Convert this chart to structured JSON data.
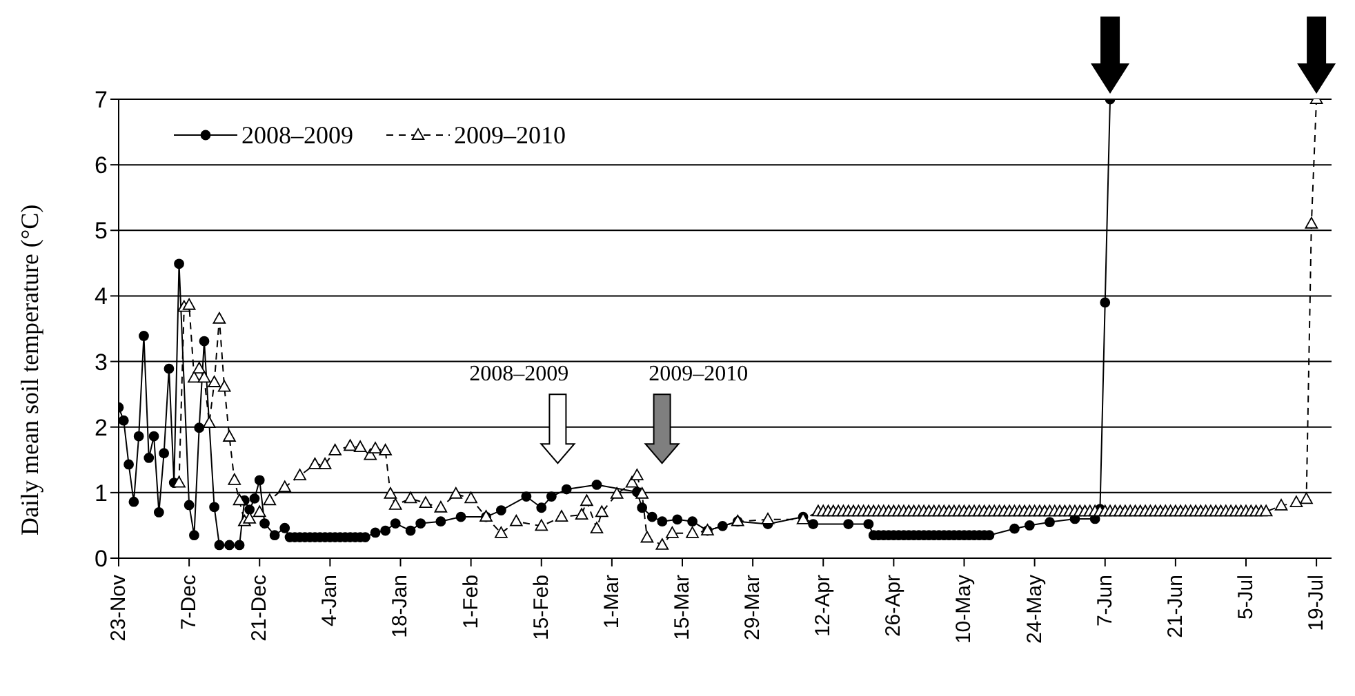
{
  "chart_data": {
    "type": "line",
    "ylabel": "Daily mean soil temperature (°C)",
    "categories": [
      "23-Nov",
      null,
      null,
      null,
      null,
      null,
      null,
      null,
      null,
      null,
      null,
      null,
      null,
      null,
      "7-Dec",
      null,
      null,
      null,
      null,
      null,
      null,
      null,
      null,
      null,
      null,
      null,
      null,
      null,
      "21-Dec",
      null,
      null,
      null,
      null,
      null,
      null,
      null,
      null,
      null,
      null,
      null,
      null,
      null,
      "4-Jan",
      null,
      null,
      null,
      null,
      null,
      null,
      null,
      null,
      null,
      null,
      null,
      null,
      null,
      "18-Jan",
      null,
      null,
      null,
      null,
      null,
      null,
      null,
      null,
      null,
      null,
      null,
      null,
      null,
      "1-Feb",
      null,
      null,
      null,
      null,
      null,
      null,
      null,
      null,
      null,
      null,
      null,
      null,
      null,
      "15-Feb",
      null,
      null,
      null,
      null,
      null,
      null,
      null,
      null,
      null,
      null,
      null,
      null,
      null,
      "1-Mar",
      null,
      null,
      null,
      null,
      null,
      null,
      null,
      null,
      null,
      null,
      null,
      null,
      null,
      "15-Mar",
      null,
      null,
      null,
      null,
      null,
      null,
      null,
      null,
      null,
      null,
      null,
      null,
      null,
      "29-Mar",
      null,
      null,
      null,
      null,
      null,
      null,
      null,
      null,
      null,
      null,
      null,
      null,
      null,
      "12-Apr",
      null,
      null,
      null,
      null,
      null,
      null,
      null,
      null,
      null,
      null,
      null,
      null,
      null,
      "26-Apr",
      null,
      null,
      null,
      null,
      null,
      null,
      null,
      null,
      null,
      null,
      null,
      null,
      null,
      "10-May",
      null,
      null,
      null,
      null,
      null,
      null,
      null,
      null,
      null,
      null,
      null,
      null,
      null,
      "24-May",
      null,
      null,
      null,
      null,
      null,
      null,
      null,
      null,
      null,
      null,
      null,
      null,
      null,
      "7-Jun",
      null,
      null,
      null,
      null,
      null,
      null,
      null,
      null,
      null,
      null,
      null,
      null,
      null,
      "21-Jun",
      null,
      null,
      null,
      null,
      null,
      null,
      null,
      null,
      null,
      null,
      null,
      null,
      null,
      "5-Jul",
      null,
      null,
      null,
      null,
      null,
      null,
      null,
      null,
      null,
      null,
      null,
      null,
      null,
      "19-Jul",
      null,
      null,
      null
    ],
    "ylim": [
      0,
      7
    ],
    "yticks": [
      0,
      1,
      2,
      3,
      4,
      5,
      6,
      7
    ],
    "grid": "y",
    "legend": "top left",
    "series": [
      {
        "name": "2008–2009",
        "color": "#000000",
        "marker": "circle",
        "line_style": "solid",
        "values": [
          2.3,
          2.1,
          1.43,
          0.86,
          1.86,
          3.39,
          1.53,
          1.86,
          0.7,
          1.6,
          2.89,
          1.15,
          4.49,
          null,
          0.81,
          0.35,
          1.99,
          3.31,
          null,
          0.78,
          0.2,
          null,
          0.2,
          null,
          0.2,
          0.88,
          0.74,
          0.91,
          1.19,
          0.53,
          null,
          0.35,
          null,
          0.46,
          0.32,
          0.32,
          0.32,
          0.32,
          0.32,
          0.32,
          0.32,
          0.32,
          0.32,
          0.32,
          0.32,
          0.32,
          0.32,
          0.32,
          0.32,
          0.32,
          null,
          0.39,
          null,
          0.42,
          null,
          0.53,
          null,
          null,
          0.42,
          null,
          0.53,
          null,
          null,
          null,
          0.56,
          null,
          null,
          null,
          0.63,
          null,
          null,
          null,
          null,
          0.63,
          null,
          null,
          0.73,
          null,
          null,
          null,
          null,
          0.94,
          null,
          null,
          0.77,
          null,
          0.94,
          null,
          null,
          1.05,
          null,
          null,
          null,
          null,
          null,
          1.12,
          null,
          null,
          null,
          null,
          null,
          null,
          null,
          1.01,
          0.77,
          null,
          0.63,
          null,
          0.56,
          null,
          null,
          0.59,
          null,
          null,
          0.56,
          null,
          null,
          0.42,
          null,
          null,
          0.49,
          null,
          null,
          0.56,
          null,
          null,
          null,
          null,
          null,
          0.52,
          null,
          null,
          null,
          null,
          null,
          null,
          0.63,
          null,
          0.52,
          null,
          null,
          null,
          null,
          null,
          null,
          0.52,
          null,
          null,
          null,
          0.52,
          0.35,
          0.35,
          0.35,
          0.35,
          0.35,
          0.35,
          0.35,
          0.35,
          0.35,
          0.35,
          0.35,
          0.35,
          0.35,
          0.35,
          0.35,
          0.35,
          0.35,
          0.35,
          0.35,
          0.35,
          0.35,
          0.35,
          0.35,
          0.35,
          null,
          null,
          null,
          null,
          0.45,
          null,
          null,
          0.5,
          null,
          null,
          null,
          0.55,
          null,
          null,
          null,
          null,
          0.6,
          null,
          null,
          null,
          0.6,
          0.75,
          3.9,
          7,
          null,
          null,
          null,
          null,
          null,
          null,
          null,
          null,
          null,
          null,
          null,
          null,
          null,
          null,
          null,
          null,
          null,
          null,
          null,
          null,
          null,
          null,
          null,
          null,
          null,
          null,
          null,
          null,
          null,
          null,
          null,
          null,
          null,
          null,
          null,
          null,
          null,
          null,
          null,
          null,
          null,
          null,
          null,
          null
        ]
      },
      {
        "name": "2009–2010",
        "color": "#000000",
        "marker": "triangle",
        "line_style": "dashed",
        "values": [
          null,
          null,
          null,
          null,
          null,
          null,
          null,
          null,
          null,
          null,
          null,
          null,
          1.15,
          3.83,
          3.86,
          2.75,
          2.89,
          2.75,
          2.06,
          2.68,
          3.65,
          2.61,
          1.85,
          1.19,
          0.88,
          0.56,
          0.6,
          null,
          0.7,
          null,
          0.88,
          null,
          null,
          1.08,
          null,
          null,
          1.26,
          null,
          null,
          1.43,
          null,
          1.43,
          null,
          1.64,
          null,
          null,
          1.71,
          null,
          1.69,
          null,
          1.57,
          1.67,
          null,
          1.64,
          0.98,
          0.81,
          null,
          null,
          0.91,
          null,
          null,
          0.84,
          null,
          null,
          0.77,
          null,
          null,
          0.98,
          null,
          null,
          0.91,
          null,
          null,
          0.63,
          null,
          null,
          0.38,
          null,
          null,
          0.56,
          null,
          null,
          null,
          null,
          0.49,
          null,
          null,
          null,
          0.63,
          null,
          null,
          null,
          0.66,
          0.87,
          null,
          0.45,
          0.7,
          null,
          null,
          0.98,
          null,
          null,
          1.15,
          1.26,
          0.98,
          0.31,
          null,
          null,
          0.2,
          null,
          0.38,
          null,
          null,
          null,
          0.38,
          null,
          null,
          0.42,
          null,
          null,
          null,
          null,
          null,
          0.56,
          null,
          null,
          null,
          null,
          null,
          0.59,
          null,
          null,
          null,
          null,
          null,
          null,
          0.59,
          null,
          null,
          0.71,
          0.71,
          0.71,
          0.71,
          0.71,
          0.71,
          0.71,
          0.71,
          0.71,
          0.71,
          0.71,
          0.71,
          0.71,
          0.71,
          0.71,
          0.71,
          0.71,
          0.71,
          0.71,
          0.71,
          0.71,
          0.71,
          0.71,
          0.71,
          0.71,
          0.71,
          0.71,
          0.71,
          0.71,
          0.71,
          0.71,
          0.71,
          0.71,
          0.71,
          0.71,
          0.71,
          0.71,
          0.71,
          0.71,
          0.71,
          0.71,
          0.71,
          0.71,
          0.71,
          0.71,
          0.71,
          0.71,
          0.71,
          0.71,
          0.71,
          0.71,
          0.71,
          0.71,
          0.71,
          0.71,
          0.71,
          0.71,
          0.71,
          0.71,
          0.71,
          0.71,
          0.71,
          0.71,
          0.71,
          0.71,
          0.71,
          0.71,
          0.71,
          0.71,
          0.71,
          0.71,
          0.71,
          0.71,
          0.71,
          0.71,
          0.71,
          0.71,
          0.71,
          0.71,
          0.71,
          0.71,
          0.71,
          0.71,
          0.71,
          0.71,
          0.71,
          0.71,
          0.71,
          0.71,
          0.71,
          null,
          null,
          0.8,
          null,
          null,
          0.85,
          null,
          0.9,
          5.1,
          7,
          null,
          null,
          null
        ]
      }
    ],
    "annotations": [
      "2008–2009",
      "2009–2010"
    ]
  }
}
